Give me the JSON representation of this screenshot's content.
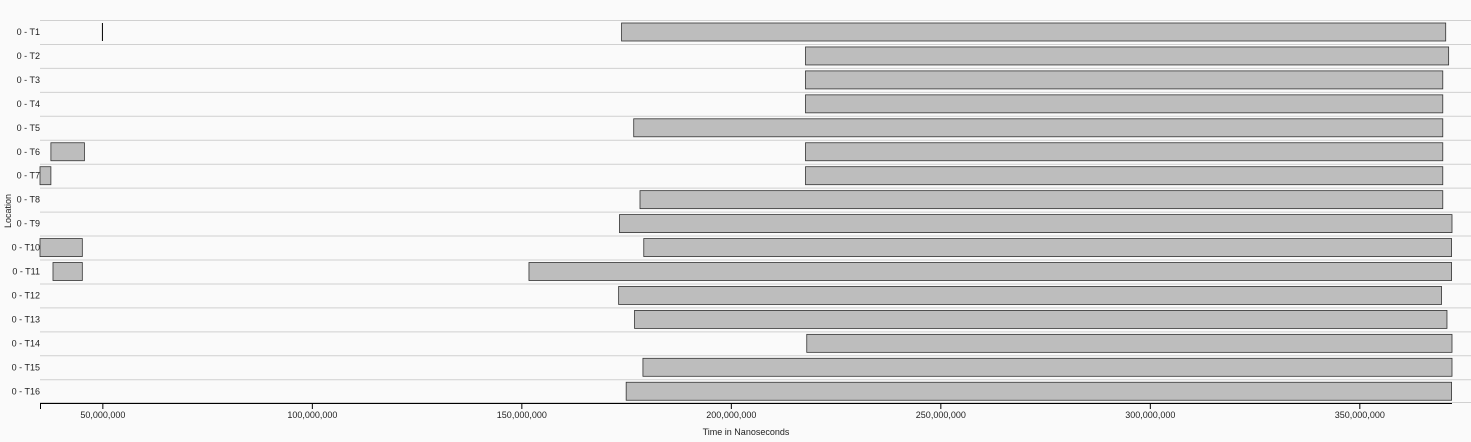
{
  "chart_data": {
    "type": "gantt",
    "xlabel": "Time in Nanoseconds",
    "ylabel": "Location",
    "xlim": [
      35000000,
      372000000
    ],
    "x_ticks": [
      {
        "value": 50000000,
        "label": "50,000,000"
      },
      {
        "value": 100000000,
        "label": "100,000,000"
      },
      {
        "value": 150000000,
        "label": "150,000,000"
      },
      {
        "value": 200000000,
        "label": "200,000,000"
      },
      {
        "value": 250000000,
        "label": "250,000,000"
      },
      {
        "value": 300000000,
        "label": "300,000,000"
      },
      {
        "value": 350000000,
        "label": "350,000,000"
      }
    ],
    "rows": [
      {
        "label": "0 - T1",
        "intervals": [
          [
            173800000,
            370500000
          ]
        ],
        "markers": [
          49900000
        ]
      },
      {
        "label": "0 - T2",
        "intervals": [
          [
            217700000,
            371200000
          ]
        ]
      },
      {
        "label": "0 - T3",
        "intervals": [
          [
            217700000,
            369800000
          ]
        ]
      },
      {
        "label": "0 - T4",
        "intervals": [
          [
            217700000,
            369800000
          ]
        ]
      },
      {
        "label": "0 - T5",
        "intervals": [
          [
            176700000,
            369800000
          ]
        ]
      },
      {
        "label": "0 - T6",
        "intervals": [
          [
            37600000,
            45600000
          ],
          [
            217700000,
            369800000
          ]
        ]
      },
      {
        "label": "0 - T7",
        "intervals": [
          [
            35000000,
            37600000
          ],
          [
            217700000,
            369800000
          ]
        ]
      },
      {
        "label": "0 - T8",
        "intervals": [
          [
            178200000,
            369800000
          ]
        ]
      },
      {
        "label": "0 - T9",
        "intervals": [
          [
            173300000,
            372000000
          ]
        ]
      },
      {
        "label": "0 - T10",
        "intervals": [
          [
            35000000,
            45100000
          ],
          [
            179100000,
            371900000
          ]
        ]
      },
      {
        "label": "0 - T11",
        "intervals": [
          [
            38100000,
            45100000
          ],
          [
            151700000,
            371900000
          ]
        ]
      },
      {
        "label": "0 - T12",
        "intervals": [
          [
            173100000,
            369500000
          ]
        ]
      },
      {
        "label": "0 - T13",
        "intervals": [
          [
            176900000,
            370800000
          ]
        ]
      },
      {
        "label": "0 - T14",
        "intervals": [
          [
            218000000,
            372000000
          ]
        ]
      },
      {
        "label": "0 - T15",
        "intervals": [
          [
            178900000,
            372000000
          ]
        ]
      },
      {
        "label": "0 - T16",
        "intervals": [
          [
            174900000,
            371900000
          ]
        ]
      }
    ]
  }
}
